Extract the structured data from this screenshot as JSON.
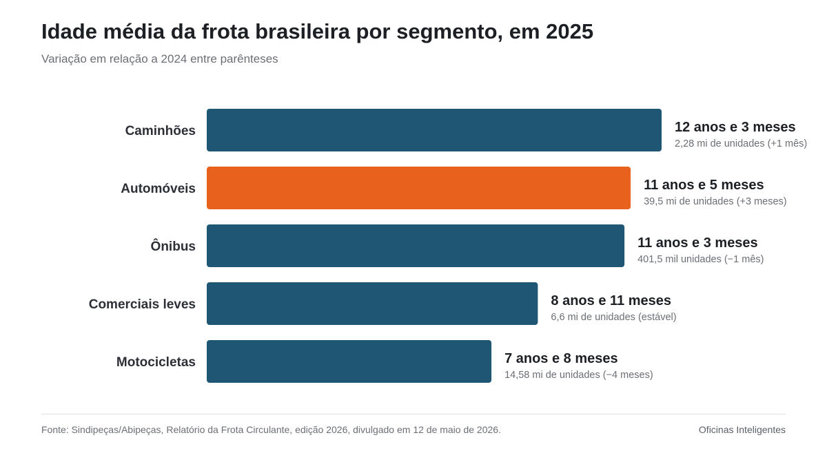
{
  "header": {
    "title": "Idade média da frota brasileira por segmento, em 2025",
    "subtitle": "Variação em relação a 2024 entre parênteses"
  },
  "footer": {
    "source": "Fonte: Sindipeças/Abipeças, Relatório da Frota Circulante, edição 2026, divulgado em 12 de maio de 2026.",
    "brand": "Oficinas Inteligentes"
  },
  "colors": {
    "default_bar": "#1f5673",
    "highlight_bar": "#e8621e"
  },
  "chart_data": {
    "type": "bar",
    "orientation": "horizontal",
    "title": "Idade média da frota brasileira por segmento, em 2025",
    "subtitle": "Variação em relação a 2024 entre parênteses",
    "xlabel": "",
    "ylabel": "",
    "grid": false,
    "categories": [
      "Caminhões",
      "Automóveis",
      "Ônibus",
      "Comerciais leves",
      "Motocicletas"
    ],
    "values": [
      12.25,
      11.4167,
      11.25,
      8.9167,
      7.6667
    ],
    "value_labels": [
      "12 anos e 3 meses",
      "11 anos e 5 meses",
      "11 anos e 3 meses",
      "8 anos e 11 meses",
      "7 anos e 8 meses"
    ],
    "detail_labels": [
      "2,28 mi de unidades (+1 mês)",
      "39,5 mi de unidades (+3 meses)",
      "401,5 mil unidades (−1 mês)",
      "6,6 mi de unidades (estável)",
      "14,58 mi de unidades (−4 meses)"
    ],
    "highlight_index": 1,
    "xlim": [
      0,
      12.25
    ]
  }
}
